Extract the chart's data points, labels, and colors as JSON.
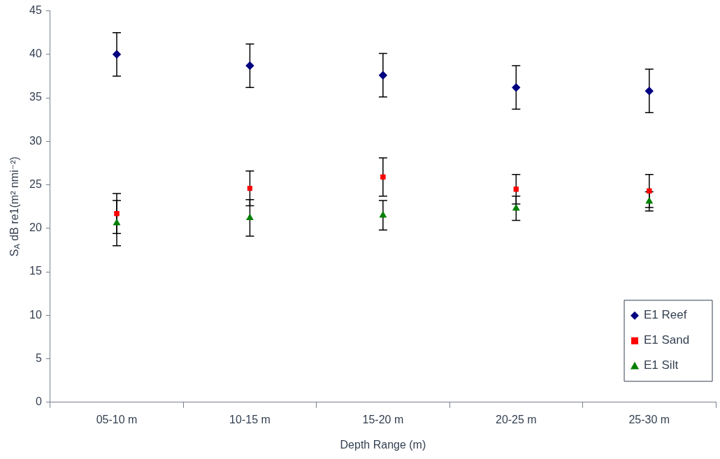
{
  "chart_data": {
    "type": "scatter",
    "xlabel": "Depth Range (m)",
    "ylabel": "S$_{A}$ dB re1(m² nmi⁻²)",
    "categories": [
      "05-10 m",
      "10-15 m",
      "15-20 m",
      "20-25 m",
      "25-30 m"
    ],
    "series": [
      {
        "name": "E1 Reef",
        "color": "#000080",
        "marker": "diamond",
        "values": [
          40.0,
          38.7,
          37.6,
          36.2,
          35.8
        ],
        "errors": [
          2.5,
          2.5,
          2.5,
          2.5,
          2.5
        ]
      },
      {
        "name": "E1 Sand",
        "color": "#ff0000",
        "marker": "square",
        "values": [
          21.7,
          24.6,
          25.9,
          24.5,
          24.3
        ],
        "errors": [
          2.3,
          2.0,
          2.2,
          1.7,
          1.9
        ]
      },
      {
        "name": "E1 Silt",
        "color": "#008000",
        "marker": "triangle",
        "values": [
          20.6,
          21.2,
          21.5,
          22.3,
          23.1
        ],
        "errors": [
          2.6,
          2.1,
          1.7,
          1.4,
          1.1
        ]
      }
    ],
    "ylim": [
      0,
      45
    ],
    "yticks": [
      0,
      5,
      10,
      15,
      20,
      25,
      30,
      35,
      40,
      45
    ],
    "grid": false,
    "legend": "bottom right"
  }
}
